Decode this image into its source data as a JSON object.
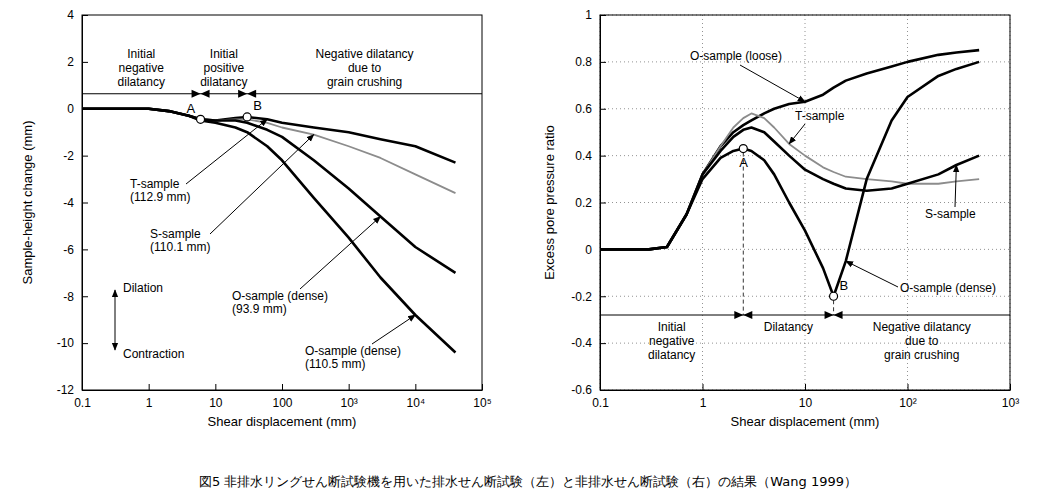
{
  "chart_data": [
    {
      "type": "line",
      "x_label": "Shear displacement (mm)",
      "y_label": "Sample-height change (mm)",
      "log": "x",
      "grid": false,
      "xlim": [
        0.1,
        100000
      ],
      "xticks": [
        0.1,
        1,
        10,
        100,
        {
          "value": 1000,
          "label": "10³"
        },
        {
          "value": 10000,
          "label": "10⁴"
        },
        {
          "value": 100000,
          "label": "10⁵"
        }
      ],
      "ylim": [
        -12,
        4
      ],
      "yticks": [
        -12,
        -10,
        -8,
        -6,
        -4,
        -2,
        0,
        2,
        4
      ],
      "x": [
        0.1,
        0.3,
        1,
        2,
        4,
        6,
        10,
        20,
        30,
        60,
        100,
        300,
        1000,
        3000,
        10000,
        40000
      ],
      "series": [
        {
          "name": "T-sample (112.9 mm)",
          "color": "#000000",
          "values": [
            0,
            0,
            0,
            -0.1,
            -0.3,
            -0.45,
            -0.5,
            -0.4,
            -0.35,
            -0.45,
            -0.6,
            -0.8,
            -1.0,
            -1.3,
            -1.6,
            -2.3
          ]
        },
        {
          "name": "S-sample (110.1 mm)",
          "color": "#8c8c8c",
          "values": [
            0,
            0,
            0,
            -0.1,
            -0.3,
            -0.45,
            -0.5,
            -0.45,
            -0.45,
            -0.6,
            -0.8,
            -1.1,
            -1.6,
            -2.1,
            -2.8,
            -3.6
          ]
        },
        {
          "name": "O-sample (dense) (93.9 mm)",
          "color": "#000000",
          "values": [
            0,
            0,
            0,
            -0.1,
            -0.3,
            -0.45,
            -0.5,
            -0.5,
            -0.6,
            -0.9,
            -1.2,
            -2.2,
            -3.4,
            -4.6,
            -5.9,
            -7.0
          ]
        },
        {
          "name": "O-sample (dense) (110.5 mm)",
          "color": "#000000",
          "values": [
            0,
            0,
            0,
            -0.1,
            -0.3,
            -0.5,
            -0.6,
            -0.8,
            -1.0,
            -1.6,
            -2.2,
            -3.8,
            -5.5,
            -7.2,
            -8.8,
            -10.4
          ]
        }
      ],
      "annotations": [
        {
          "text": "A",
          "x": 6,
          "y": -0.45
        },
        {
          "text": "B",
          "x": 30,
          "y": -0.35
        }
      ],
      "regions": [
        {
          "text": "Initial\nnegative\ndilatancy",
          "from": 0.1,
          "to": 6
        },
        {
          "text": "Initial\npositive\ndilatancy",
          "from": 6,
          "to": 30
        },
        {
          "text": "Negative dilatancy\ndue to\ngrain crushing",
          "from": 30,
          "to": 100000
        }
      ],
      "direction_labels": [
        "Dilation",
        "Contraction"
      ]
    },
    {
      "type": "line",
      "x_label": "Shear displacement (mm)",
      "y_label": "Excess pore pressure ratio",
      "log": "x",
      "grid": true,
      "xlim": [
        0.1,
        1000
      ],
      "xticks": [
        0.1,
        1,
        10,
        {
          "value": 100,
          "label": "10²"
        },
        {
          "value": 1000,
          "label": "10³"
        }
      ],
      "ylim": [
        -0.6,
        1
      ],
      "yticks": [
        -0.6,
        -0.4,
        -0.2,
        0,
        0.2,
        0.4,
        0.6,
        0.8,
        1
      ],
      "x": [
        0.1,
        0.3,
        0.45,
        0.7,
        1,
        1.5,
        2,
        2.5,
        3,
        4,
        5,
        7,
        10,
        15,
        19,
        25,
        40,
        70,
        100,
        200,
        300,
        500
      ],
      "series": [
        {
          "name": "O-sample (loose)",
          "color": "#000000",
          "values": [
            0,
            0,
            0.01,
            0.15,
            0.32,
            0.44,
            0.5,
            0.53,
            0.55,
            0.58,
            0.6,
            0.62,
            0.63,
            0.66,
            0.69,
            0.72,
            0.75,
            0.78,
            0.8,
            0.83,
            0.84,
            0.85
          ]
        },
        {
          "name": "T-sample",
          "color": "#8c8c8c",
          "values": [
            0,
            0,
            0.01,
            0.15,
            0.32,
            0.44,
            0.52,
            0.56,
            0.58,
            0.56,
            0.52,
            0.45,
            0.4,
            0.35,
            0.33,
            0.31,
            0.3,
            0.29,
            0.28,
            0.28,
            0.29,
            0.3
          ]
        },
        {
          "name": "S-sample",
          "color": "#000000",
          "values": [
            0,
            0,
            0.01,
            0.15,
            0.32,
            0.42,
            0.48,
            0.51,
            0.52,
            0.5,
            0.46,
            0.4,
            0.34,
            0.3,
            0.28,
            0.26,
            0.25,
            0.26,
            0.28,
            0.32,
            0.36,
            0.4
          ]
        },
        {
          "name": "O-sample (dense)",
          "color": "#000000",
          "values": [
            0,
            0,
            0.01,
            0.15,
            0.3,
            0.39,
            0.42,
            0.43,
            0.42,
            0.38,
            0.32,
            0.2,
            0.08,
            -0.08,
            -0.2,
            -0.05,
            0.3,
            0.55,
            0.65,
            0.74,
            0.77,
            0.8
          ]
        }
      ],
      "annotations": [
        {
          "text": "A",
          "x": 2.5,
          "y": 0.43
        },
        {
          "text": "B",
          "x": 19,
          "y": -0.2
        }
      ],
      "regions": [
        {
          "text": "Initial\nnegative\ndilatancy",
          "from": 0.1,
          "to": 2.5
        },
        {
          "text": "Dilatancy",
          "from": 2.5,
          "to": 19
        },
        {
          "text": "Negative dilatancy\ndue to\ngrain crushing",
          "from": 19,
          "to": 1000
        }
      ]
    }
  ],
  "caption": "図5 非排水リングせん断試験機を用いた排水せん断試験（左）と非排水せん断試験（右）の結果（Wang 1999）"
}
